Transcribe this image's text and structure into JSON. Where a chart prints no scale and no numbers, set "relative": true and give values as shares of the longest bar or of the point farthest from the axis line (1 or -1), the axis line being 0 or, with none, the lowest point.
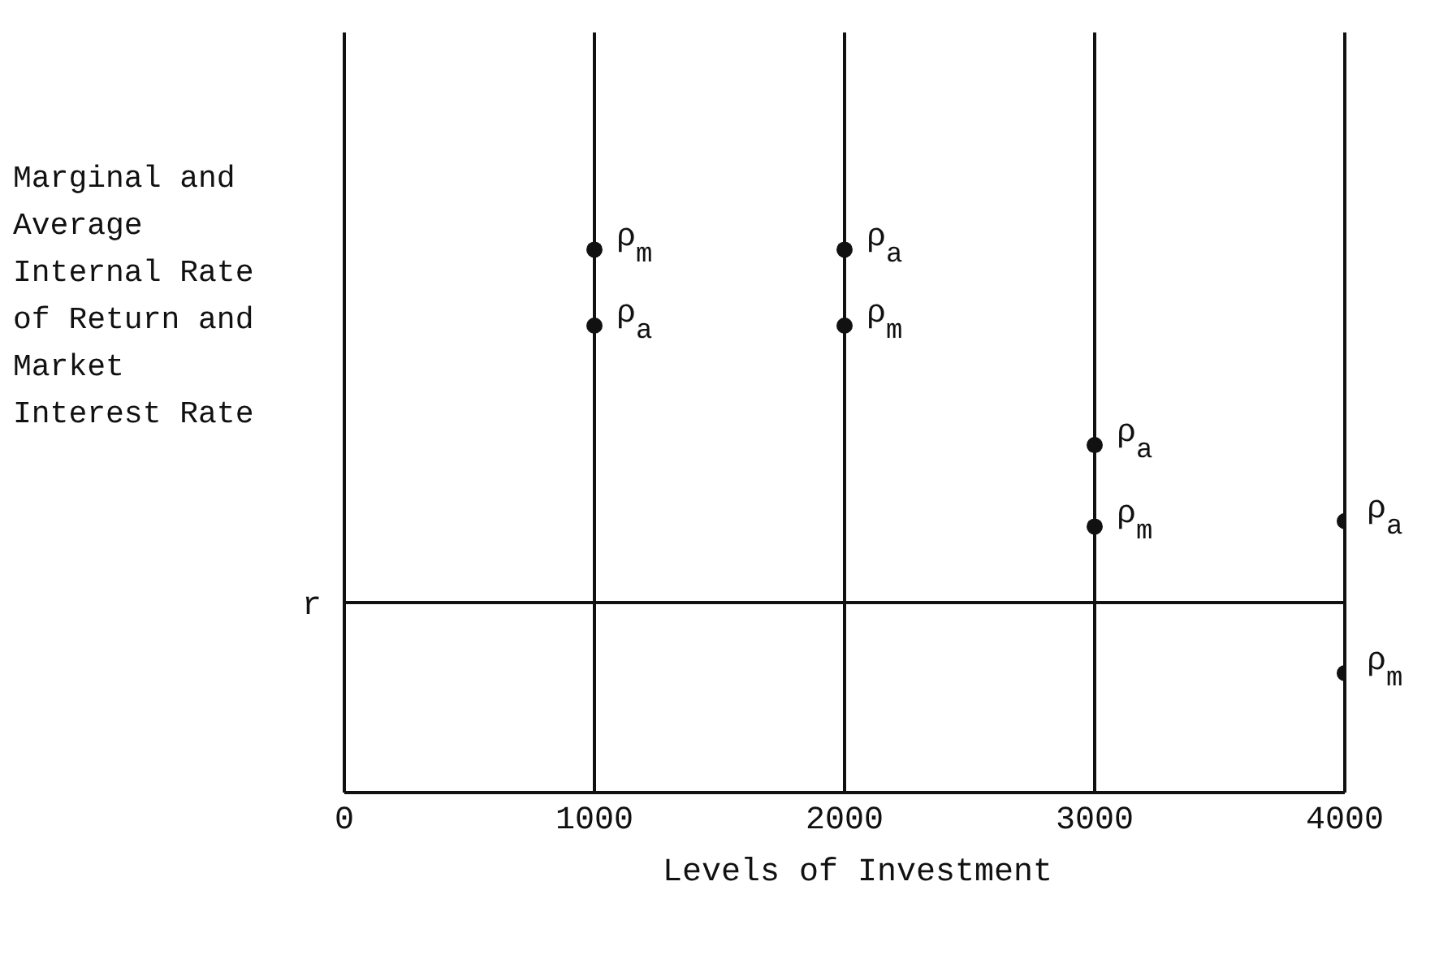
{
  "chart_data": {
    "type": "scatter",
    "relative": true,
    "xlabel": "Levels of Investment",
    "ylabel": "Marginal and Average Internal Rate of Return and Market Interest Rate",
    "x": [
      1000,
      2000,
      3000,
      4000
    ],
    "series": [
      {
        "name": "ρ$_{m}$",
        "color": "#111111",
        "values": [
          1.0,
          0.86,
          0.49,
          0.22
        ]
      },
      {
        "name": "ρ$_{a}$",
        "color": "#111111",
        "values": [
          0.86,
          1.0,
          0.64,
          0.5
        ]
      }
    ],
    "xlim": [
      0,
      4000
    ],
    "xticks": [
      0,
      1000,
      2000,
      3000,
      4000
    ],
    "ref_lines": [
      {
        "axis": "y",
        "value": 0.35,
        "label": "r",
        "color": "#111111"
      }
    ],
    "grid": "x",
    "marker": "circle"
  }
}
